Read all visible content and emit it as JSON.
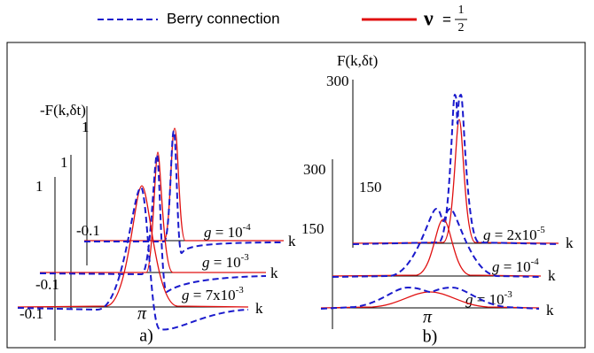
{
  "legend": {
    "items": [
      {
        "label": "Berry connection"
      },
      {
        "symbol": "ν",
        "equals": "=",
        "numerator": "1",
        "denominator": "2"
      }
    ]
  },
  "panel_a": {
    "label": "a)",
    "y_label": "-F(k,δt)",
    "x_tick": "π",
    "curves": [
      {
        "g": "g",
        "base": "= 10",
        "exp": "-4",
        "tick_top": "1",
        "tick_bottom": "-0.1",
        "axis": "k"
      },
      {
        "g": "g",
        "base": "= 10",
        "exp": "-3",
        "tick_top": "1",
        "tick_bottom": "-0.1",
        "axis": "k"
      },
      {
        "g": "g",
        "base": "= 7x10",
        "exp": "-3",
        "tick_top": "1",
        "tick_bottom": "-0.1",
        "axis": "k"
      }
    ]
  },
  "panel_b": {
    "label": "b)",
    "y_label": "F(k,δt)",
    "x_tick": "π",
    "curves": [
      {
        "g": "g",
        "base": "= 2x10",
        "exp": "-5",
        "tick_top": "300",
        "tick_mid": "150",
        "axis": "k"
      },
      {
        "g": "g",
        "base": "= 10",
        "exp": "-4",
        "tick_top": "300",
        "tick_mid": "150",
        "axis": "k"
      },
      {
        "g": "g",
        "base": "= 10",
        "exp": "-3",
        "axis": "k"
      }
    ]
  }
}
